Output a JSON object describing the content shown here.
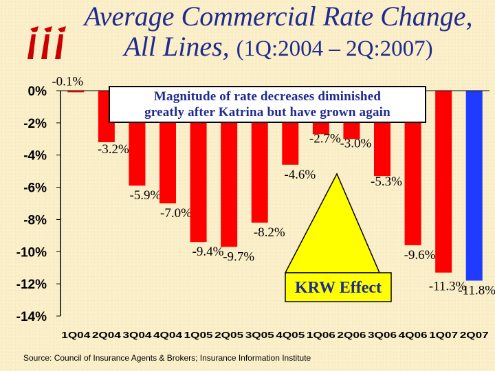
{
  "title_line1": "Average Commercial Rate Change,",
  "title_line2": "All Lines,",
  "title_period": "(1Q:2004 – 2Q:2007)",
  "source": "Source:  Council of Insurance Agents & Brokers; Insurance Information Institute",
  "callout": {
    "line1": "Magnitude of rate decreases diminished",
    "line2": "greatly after Katrina but have grown again"
  },
  "krw_label": "KRW Effect",
  "colors": {
    "bar": "#ff0000",
    "bar_highlight": "#1f3bff",
    "title": "#1f2b8f",
    "callout_fill": "#ffff00",
    "logo": "#cc0000"
  },
  "logo_icon": "iii-logo-icon",
  "chart_data": {
    "type": "bar",
    "categories": [
      "1Q04",
      "2Q04",
      "3Q04",
      "4Q04",
      "1Q05",
      "2Q05",
      "3Q05",
      "4Q05",
      "1Q06",
      "2Q06",
      "3Q06",
      "4Q06",
      "1Q07",
      "2Q07"
    ],
    "values": [
      -0.1,
      -3.2,
      -5.9,
      -7.0,
      -9.4,
      -9.7,
      -8.2,
      -4.6,
      -2.7,
      -3.0,
      -5.3,
      -9.6,
      -11.3,
      -11.8
    ],
    "data_labels": [
      "-0.1%",
      "-3.2%",
      "-5.9%",
      "-7.0%",
      "-9.4%",
      "-9.7%",
      "-8.2%",
      "-4.6%",
      "-2.7%",
      "-3.0%",
      "-5.3%",
      "-9.6%",
      "-11.3%",
      "-11.8%"
    ],
    "ylim": [
      -14,
      0
    ],
    "yticks": [
      "0%",
      "-2%",
      "-4%",
      "-6%",
      "-8%",
      "-10%",
      "-12%",
      "-14%"
    ],
    "highlight_index": 13,
    "grid": false
  }
}
